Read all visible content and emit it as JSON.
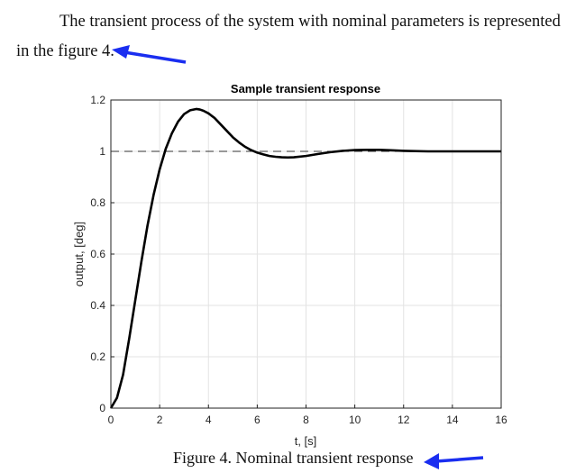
{
  "document": {
    "paragraph_line1": "The transient process of the system with nominal parameters is represented",
    "paragraph_line2": "in the figure 4.",
    "caption": "Figure 4. Nominal transient response",
    "arrow_color": "#1a2ef0"
  },
  "chart_data": {
    "type": "line",
    "title": "Sample transient response",
    "xlabel": "t, [s]",
    "ylabel": "output, [deg]",
    "xlim": [
      0,
      16
    ],
    "ylim": [
      0,
      1.2
    ],
    "xticks": [
      "0",
      "2",
      "4",
      "6",
      "8",
      "10",
      "12",
      "14",
      "16"
    ],
    "yticks": [
      "0",
      "0.2",
      "0.4",
      "0.6",
      "0.8",
      "1",
      "1.2"
    ],
    "grid": true,
    "reference_line": {
      "y": 1,
      "style": "dashed"
    },
    "series": [
      {
        "color": "#000000",
        "x": [
          0,
          0.25,
          0.5,
          0.75,
          1,
          1.25,
          1.5,
          1.75,
          2,
          2.25,
          2.5,
          2.75,
          3,
          3.25,
          3.5,
          3.65,
          3.8,
          4,
          4.25,
          4.5,
          4.75,
          5,
          5.25,
          5.5,
          5.75,
          6,
          6.25,
          6.5,
          6.75,
          7,
          7.25,
          7.5,
          8,
          8.5,
          9,
          9.5,
          10,
          10.5,
          11,
          11.5,
          12,
          13,
          14,
          15,
          16
        ],
        "y": [
          0,
          0.04,
          0.13,
          0.27,
          0.42,
          0.57,
          0.71,
          0.83,
          0.93,
          1.01,
          1.07,
          1.115,
          1.145,
          1.16,
          1.165,
          1.163,
          1.158,
          1.148,
          1.13,
          1.105,
          1.08,
          1.055,
          1.035,
          1.018,
          1.005,
          0.995,
          0.988,
          0.982,
          0.979,
          0.977,
          0.976,
          0.977,
          0.982,
          0.99,
          0.997,
          1.002,
          1.005,
          1.006,
          1.006,
          1.004,
          1.002,
          1.0,
          1.0,
          1.0,
          1.0
        ]
      }
    ]
  }
}
